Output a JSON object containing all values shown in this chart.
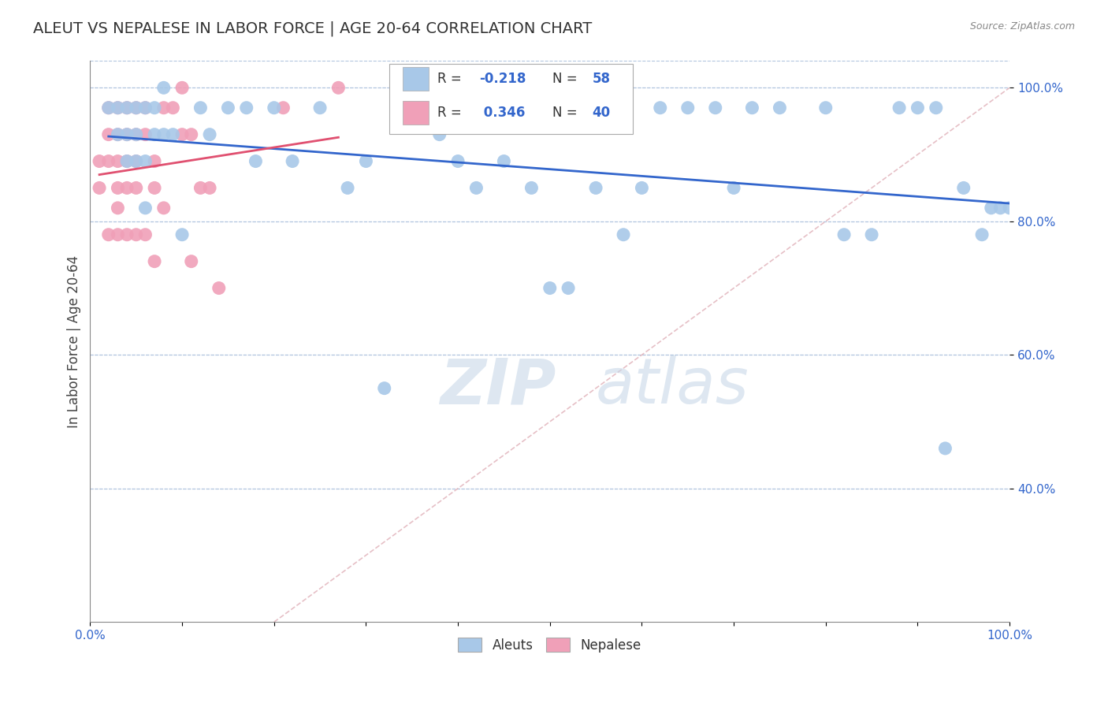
{
  "title": "ALEUT VS NEPALESE IN LABOR FORCE | AGE 20-64 CORRELATION CHART",
  "source": "Source: ZipAtlas.com",
  "ylabel": "In Labor Force | Age 20-64",
  "xlim": [
    0.0,
    1.0
  ],
  "ylim": [
    0.2,
    1.04
  ],
  "x_ticks": [
    0.0,
    0.1,
    0.2,
    0.3,
    0.4,
    0.5,
    0.6,
    0.7,
    0.8,
    0.9,
    1.0
  ],
  "x_tick_labels": [
    "0.0%",
    "",
    "",
    "",
    "",
    "",
    "",
    "",
    "",
    "",
    "100.0%"
  ],
  "y_ticks": [
    0.4,
    0.6,
    0.8,
    1.0
  ],
  "y_tick_labels": [
    "40.0%",
    "60.0%",
    "80.0%",
    "100.0%"
  ],
  "legend_r_aleut": "-0.218",
  "legend_n_aleut": "58",
  "legend_r_nepalese": "0.346",
  "legend_n_nepalese": "40",
  "aleut_color": "#a8c8e8",
  "nepalese_color": "#f0a0b8",
  "trend_aleut_color": "#3366cc",
  "trend_nepalese_color": "#e05070",
  "diagonal_color": "#e0b0b8",
  "watermark_zip": "ZIP",
  "watermark_atlas": "atlas",
  "aleut_x": [
    0.02,
    0.03,
    0.03,
    0.04,
    0.04,
    0.05,
    0.05,
    0.05,
    0.06,
    0.06,
    0.07,
    0.07,
    0.08,
    0.08,
    0.09,
    0.1,
    0.12,
    0.13,
    0.15,
    0.17,
    0.18,
    0.2,
    0.22,
    0.25,
    0.28,
    0.3,
    0.32,
    0.35,
    0.38,
    0.4,
    0.42,
    0.45,
    0.48,
    0.5,
    0.52,
    0.55,
    0.58,
    0.6,
    0.62,
    0.65,
    0.68,
    0.7,
    0.72,
    0.75,
    0.8,
    0.82,
    0.85,
    0.88,
    0.9,
    0.92,
    0.93,
    0.95,
    0.97,
    0.98,
    0.99,
    1.0,
    0.04,
    0.06
  ],
  "aleut_y": [
    0.97,
    0.97,
    0.93,
    0.97,
    0.93,
    0.97,
    0.93,
    0.89,
    0.97,
    0.89,
    0.97,
    0.93,
    1.0,
    0.93,
    0.93,
    0.78,
    0.97,
    0.93,
    0.97,
    0.97,
    0.89,
    0.97,
    0.89,
    0.97,
    0.85,
    0.89,
    0.55,
    0.97,
    0.93,
    0.89,
    0.85,
    0.89,
    0.85,
    0.7,
    0.7,
    0.85,
    0.78,
    0.85,
    0.97,
    0.97,
    0.97,
    0.85,
    0.97,
    0.97,
    0.97,
    0.78,
    0.78,
    0.97,
    0.97,
    0.97,
    0.46,
    0.85,
    0.78,
    0.82,
    0.82,
    0.82,
    0.89,
    0.82
  ],
  "nepalese_x": [
    0.01,
    0.01,
    0.02,
    0.02,
    0.02,
    0.02,
    0.03,
    0.03,
    0.03,
    0.03,
    0.03,
    0.03,
    0.04,
    0.04,
    0.04,
    0.04,
    0.04,
    0.05,
    0.05,
    0.05,
    0.05,
    0.05,
    0.06,
    0.06,
    0.06,
    0.07,
    0.07,
    0.07,
    0.08,
    0.08,
    0.09,
    0.1,
    0.1,
    0.11,
    0.11,
    0.12,
    0.13,
    0.14,
    0.21,
    0.27
  ],
  "nepalese_y": [
    0.89,
    0.85,
    0.97,
    0.93,
    0.89,
    0.78,
    0.97,
    0.93,
    0.89,
    0.85,
    0.82,
    0.78,
    0.97,
    0.93,
    0.89,
    0.85,
    0.78,
    0.97,
    0.93,
    0.89,
    0.85,
    0.78,
    0.97,
    0.93,
    0.78,
    0.89,
    0.85,
    0.74,
    0.97,
    0.82,
    0.97,
    1.0,
    0.93,
    0.93,
    0.74,
    0.85,
    0.85,
    0.7,
    0.97,
    1.0
  ]
}
